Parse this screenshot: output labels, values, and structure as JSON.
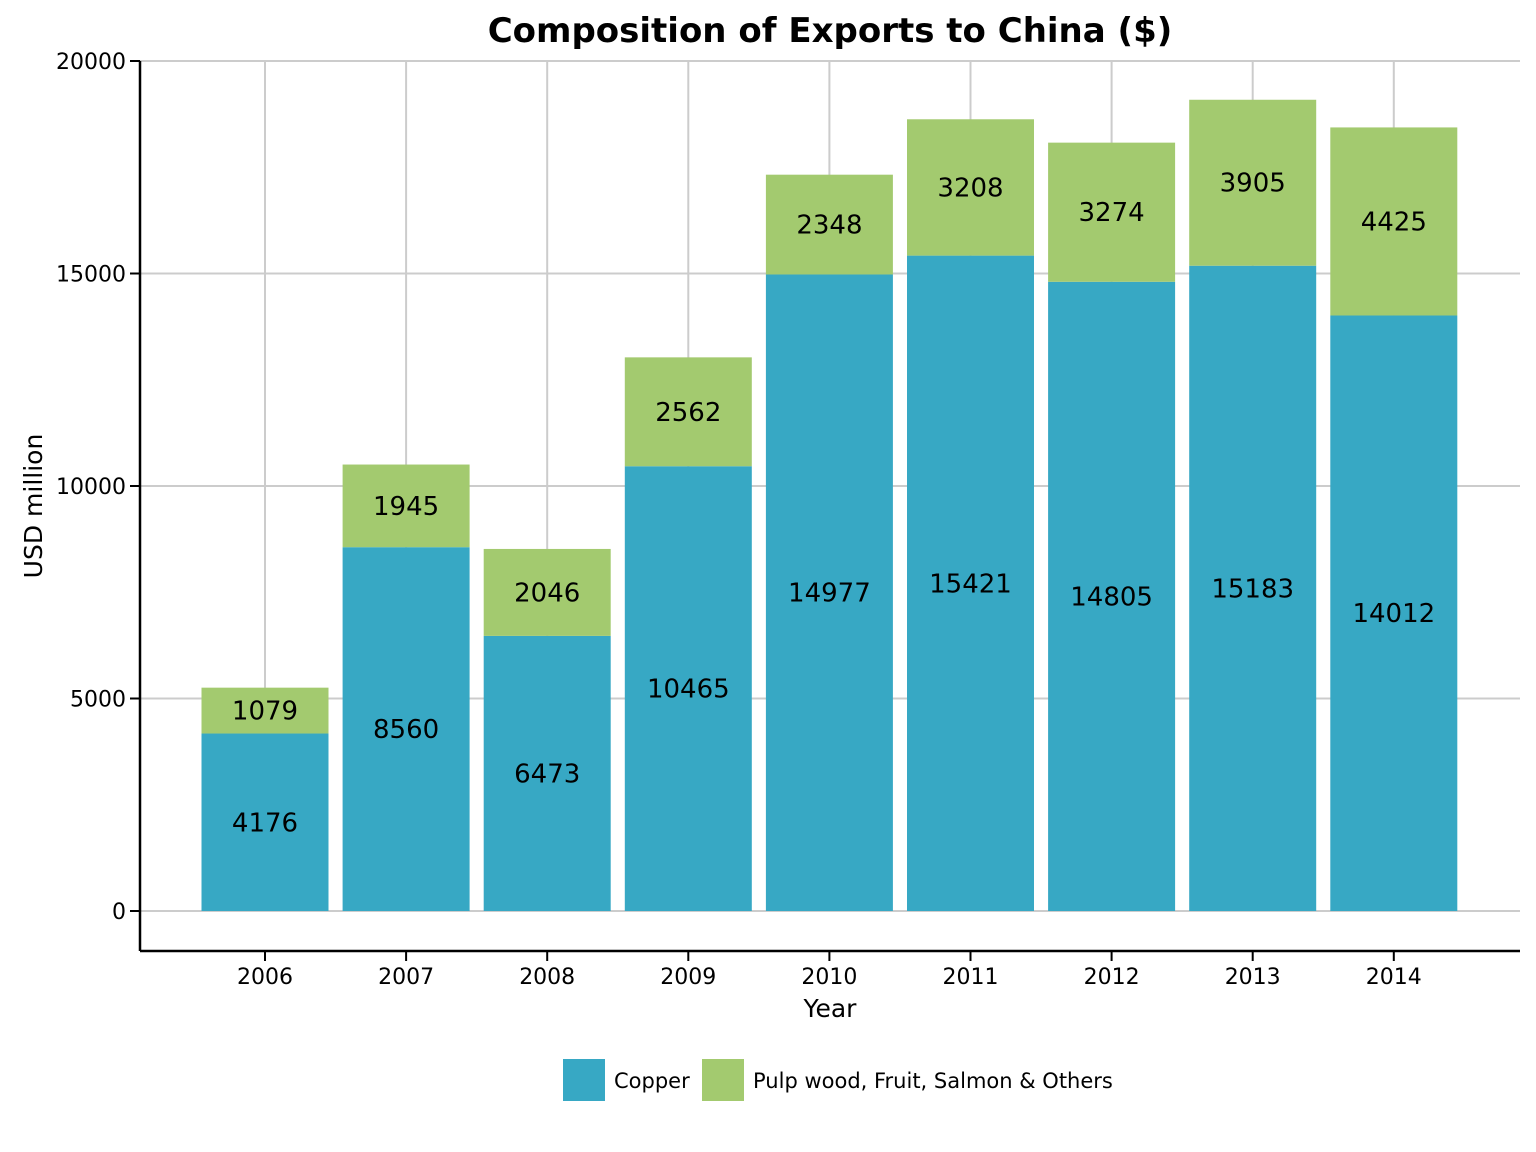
{
  "chart_data": {
    "type": "bar",
    "stacked": true,
    "title": "Composition of Exports to China ($)",
    "xlabel": "Year",
    "ylabel": "USD million",
    "categories": [
      "2006",
      "2007",
      "2008",
      "2009",
      "2010",
      "2011",
      "2012",
      "2013",
      "2014"
    ],
    "series": [
      {
        "name": "Copper",
        "color": "#37a8c4",
        "values": [
          4176,
          8560,
          6473,
          10465,
          14977,
          15421,
          14805,
          15183,
          14012
        ]
      },
      {
        "name": "Pulp wood, Fruit, Salmon & Others",
        "color": "#a3ca6f",
        "values": [
          1079,
          1945,
          2046,
          2562,
          2348,
          3208,
          3274,
          3905,
          4425
        ]
      }
    ],
    "ylim": [
      0,
      20000
    ],
    "yticks": [
      0,
      5000,
      10000,
      15000,
      20000
    ],
    "grid": true,
    "legend_position": "bottom"
  }
}
